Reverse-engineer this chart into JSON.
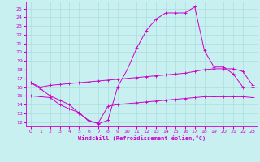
{
  "xlabel": "Windchill (Refroidissement éolien,°C)",
  "background_color": "#c8f0f0",
  "grid_color": "#aadddd",
  "line_color": "#cc00cc",
  "x_ticks": [
    0,
    1,
    2,
    3,
    4,
    5,
    6,
    7,
    8,
    9,
    10,
    11,
    12,
    13,
    14,
    15,
    16,
    17,
    18,
    19,
    20,
    21,
    22,
    23
  ],
  "ylim": [
    11.5,
    25.8
  ],
  "xlim": [
    -0.5,
    23.5
  ],
  "yticks": [
    12,
    13,
    14,
    15,
    16,
    17,
    18,
    19,
    20,
    21,
    22,
    23,
    24,
    25
  ],
  "line1_x": [
    0,
    1,
    2,
    3,
    4,
    5,
    6,
    7,
    8,
    9,
    10,
    11,
    12,
    13,
    14,
    15,
    16,
    17,
    18,
    19,
    20,
    21,
    22,
    23
  ],
  "line1_y": [
    16.5,
    15.8,
    15.0,
    14.5,
    14.0,
    13.0,
    12.2,
    11.8,
    12.2,
    16.0,
    18.0,
    20.5,
    22.5,
    23.8,
    24.5,
    24.5,
    24.5,
    25.2,
    20.2,
    18.3,
    18.3,
    17.5,
    16.0,
    16.0
  ],
  "line2_x": [
    0,
    1,
    2,
    3,
    4,
    5,
    6,
    7,
    8,
    9,
    10,
    11,
    12,
    13,
    14,
    15,
    16,
    17,
    18,
    19,
    20,
    21,
    22,
    23
  ],
  "line2_y": [
    16.5,
    16.0,
    16.2,
    16.3,
    16.4,
    16.5,
    16.6,
    16.7,
    16.8,
    16.9,
    17.0,
    17.1,
    17.2,
    17.3,
    17.4,
    17.5,
    17.6,
    17.8,
    18.0,
    18.1,
    18.1,
    18.1,
    17.8,
    16.2
  ],
  "line3_x": [
    0,
    1,
    2,
    3,
    4,
    5,
    6,
    7,
    8,
    9,
    10,
    11,
    12,
    13,
    14,
    15,
    16,
    17,
    18,
    19,
    20,
    21,
    22,
    23
  ],
  "line3_y": [
    15.0,
    14.9,
    14.8,
    14.0,
    13.5,
    13.1,
    12.1,
    11.9,
    13.8,
    14.0,
    14.1,
    14.2,
    14.3,
    14.4,
    14.5,
    14.6,
    14.7,
    14.8,
    14.9,
    14.9,
    14.9,
    14.9,
    14.9,
    14.8
  ],
  "tick_fontsize": 4.5,
  "xlabel_fontsize": 5.0
}
